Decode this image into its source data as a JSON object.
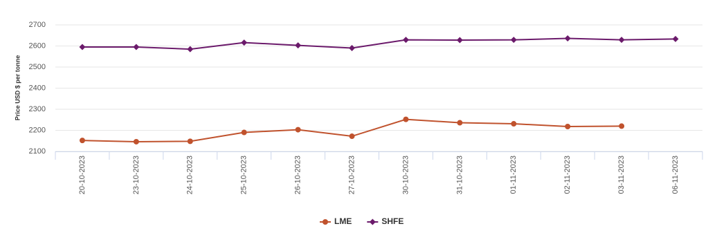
{
  "chart_data": {
    "type": "line",
    "y_label": "Price USD $ per tonne",
    "categories": [
      "20-10-2023",
      "23-10-2023",
      "24-10-2023",
      "25-10-2023",
      "26-10-2023",
      "27-10-2023",
      "30-10-2023",
      "31-10-2023",
      "01-11-2023",
      "02-11-2023",
      "03-11-2023",
      "06-11-2023"
    ],
    "series": [
      {
        "name": "LME",
        "color": "#c0522d",
        "marker": "circle",
        "values": [
          2152,
          2146,
          2148,
          2190,
          2203,
          2172,
          2252,
          2236,
          2231,
          2218,
          2220,
          null
        ]
      },
      {
        "name": "SHFE",
        "color": "#6b1a6b",
        "marker": "diamond",
        "values": [
          2595,
          2595,
          2585,
          2616,
          2603,
          2590,
          2629,
          2628,
          2629,
          2636,
          2629,
          2633
        ]
      }
    ],
    "ylim": [
      2100,
      2700
    ],
    "yticks": [
      2100,
      2200,
      2300,
      2400,
      2500,
      2600,
      2700
    ],
    "grid": true,
    "legend": "bottom"
  }
}
